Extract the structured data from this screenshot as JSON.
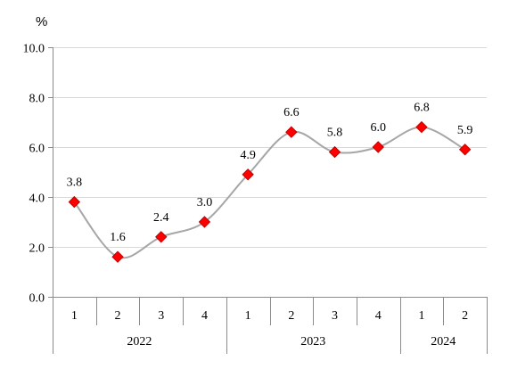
{
  "chart_data": {
    "type": "line",
    "unit_label": "%",
    "x": [
      {
        "quarter": "1",
        "year": "2022"
      },
      {
        "quarter": "2",
        "year": "2022"
      },
      {
        "quarter": "3",
        "year": "2022"
      },
      {
        "quarter": "4",
        "year": "2022"
      },
      {
        "quarter": "1",
        "year": "2023"
      },
      {
        "quarter": "2",
        "year": "2023"
      },
      {
        "quarter": "3",
        "year": "2023"
      },
      {
        "quarter": "4",
        "year": "2023"
      },
      {
        "quarter": "1",
        "year": "2024"
      },
      {
        "quarter": "2",
        "year": "2024"
      }
    ],
    "year_groups": [
      {
        "label": "2022",
        "count": 4
      },
      {
        "label": "2023",
        "count": 4
      },
      {
        "label": "2024",
        "count": 2
      }
    ],
    "series": [
      {
        "values": [
          3.8,
          1.6,
          2.4,
          3.0,
          4.9,
          6.6,
          5.8,
          6.0,
          6.8,
          5.9
        ],
        "labels": [
          "3.8",
          "1.6",
          "2.4",
          "3.0",
          "4.9",
          "6.6",
          "5.8",
          "6.0",
          "6.8",
          "5.9"
        ],
        "line_color": "#a6a6a6",
        "marker_color": "#ff0000",
        "marker": "diamond",
        "smooth": true
      }
    ],
    "ylim": [
      0,
      10
    ],
    "yticks": [
      0,
      2,
      4,
      6,
      8,
      10
    ],
    "ytick_labels": [
      "0.0",
      "2.0",
      "4.0",
      "6.0",
      "8.0",
      "10.0"
    ],
    "grid": true,
    "legend": "none"
  }
}
